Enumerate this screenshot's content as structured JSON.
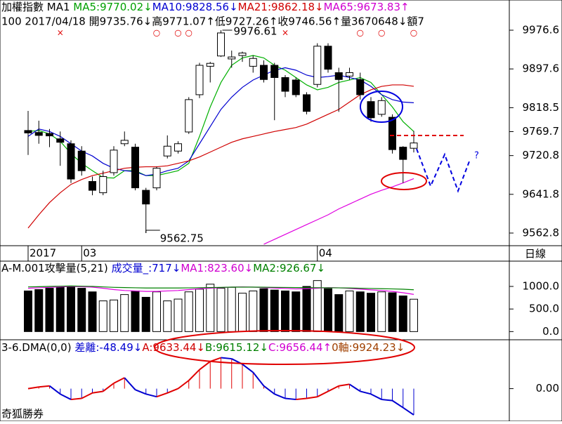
{
  "chart_data": [
    {
      "type": "candlestick",
      "header": [
        {
          "text": "加權指數 MA1 ",
          "color": "#000000"
        },
        {
          "text": "MA5:9770.02↓",
          "color": "#00a000"
        },
        {
          "text": "MA10:9828.56↓",
          "color": "#0000d0"
        },
        {
          "text": "MA21:9862.18↓",
          "color": "#d00000"
        },
        {
          "text": "MA65:9673.83↑",
          "color": "#d000d0"
        }
      ],
      "info": "100 2017/04/18 開9735.76↓高9771.07↑低9727.26↑收9746.56↑量3670648↓額7",
      "categories": [
        "2017",
        null,
        null,
        null,
        null,
        "03",
        null,
        null,
        null,
        null,
        null,
        null,
        null,
        null,
        null,
        null,
        null,
        null,
        null,
        null,
        null,
        null,
        null,
        null,
        null,
        null,
        null,
        "04",
        null,
        null,
        null,
        null,
        null,
        null,
        null,
        null,
        null
      ],
      "signals": [
        null,
        null,
        null,
        "×",
        null,
        null,
        null,
        null,
        null,
        null,
        null,
        null,
        "○",
        null,
        "○",
        "○",
        null,
        null,
        null,
        null,
        null,
        null,
        null,
        null,
        "×",
        null,
        null,
        null,
        null,
        null,
        null,
        "○",
        null,
        "○",
        null,
        null,
        "○"
      ],
      "open": [
        9772,
        9768,
        9766,
        9755,
        9745,
        9730,
        9668,
        9645,
        9686,
        9745,
        9738,
        9650,
        9655,
        9720,
        9730,
        9769,
        9845,
        9903,
        9924,
        9918,
        9925,
        9903,
        9905,
        9905,
        9880,
        9875,
        9845,
        9866,
        9944,
        9890,
        9883,
        9876,
        9831,
        9805,
        9799,
        9738,
        9735.76
      ],
      "high": [
        9812,
        9792,
        9775,
        9770,
        9752,
        9740,
        9678,
        9690,
        9740,
        9770,
        9745,
        9655,
        9698,
        9762,
        9750,
        9840,
        9910,
        9912,
        9976.61,
        9935,
        9933,
        9925,
        9915,
        9910,
        9885,
        9880,
        9850,
        9950,
        9950,
        9900,
        9900,
        9890,
        9840,
        9840,
        9805,
        9740,
        9771.07
      ],
      "low": [
        9722,
        9745,
        9738,
        9700,
        9665,
        9680,
        9640,
        9640,
        9680,
        9740,
        9650,
        9562.75,
        9650,
        9715,
        9725,
        9765,
        9838,
        9870,
        9922,
        9900,
        9912,
        9890,
        9870,
        9793,
        9840,
        9840,
        9805,
        9860,
        9890,
        9810,
        9875,
        9835,
        9790,
        9800,
        9725,
        9665,
        9727.26
      ],
      "close": [
        9767,
        9762,
        9761,
        9748,
        9673,
        9690,
        9650,
        9678,
        9732,
        9752,
        9655,
        9622,
        9695,
        9740,
        9745,
        9835,
        9905,
        9909,
        9971,
        9922,
        9930,
        9919,
        9876,
        9880,
        9852,
        9845,
        9811,
        9944,
        9897,
        9876,
        9890,
        9845,
        9798,
        9833,
        9733,
        9713,
        9746.56
      ],
      "series": [
        {
          "name": "MA5",
          "color": "#00b000",
          "values": [
            9770,
            9772,
            9765,
            9750,
            9725,
            9705,
            9690,
            9676,
            9675,
            9690,
            9690,
            9680,
            9680,
            9685,
            9690,
            9705,
            9760,
            9820,
            9870,
            9905,
            9920,
            9925,
            9920,
            9905,
            9895,
            9880,
            9865,
            9855,
            9860,
            9870,
            9875,
            9880,
            9870,
            9845,
            9820,
            9790,
            9770.02
          ]
        },
        {
          "name": "MA10",
          "color": "#0000d0",
          "values": [
            9760,
            9775,
            9770,
            9760,
            9745,
            9730,
            9720,
            9705,
            9695,
            9690,
            9688,
            9680,
            9683,
            9690,
            9695,
            9710,
            9745,
            9780,
            9815,
            9840,
            9860,
            9875,
            9885,
            9895,
            9900,
            9895,
            9885,
            9880,
            9882,
            9885,
            9880,
            9875,
            9862,
            9845,
            9835,
            9830,
            9828.56
          ]
        },
        {
          "name": "MA21",
          "color": "#d00000",
          "values": [
            9573,
            9600,
            9625,
            9645,
            9662,
            9672,
            9680,
            9685,
            9690,
            9695,
            9697,
            9698,
            9698,
            9700,
            9705,
            9710,
            9718,
            9728,
            9738,
            9748,
            9755,
            9760,
            9765,
            9770,
            9774,
            9778,
            9785,
            9795,
            9805,
            9815,
            9830,
            9845,
            9855,
            9862,
            9865,
            9865,
            9862.18
          ]
        },
        {
          "name": "MA65",
          "color": "#e000e0",
          "values": [
            null,
            null,
            null,
            null,
            null,
            null,
            null,
            null,
            null,
            null,
            null,
            null,
            null,
            null,
            null,
            null,
            null,
            null,
            null,
            null,
            null,
            null,
            9540,
            9550,
            9560,
            9570,
            9580,
            9590,
            9600,
            9612,
            9622,
            9632,
            9642,
            9650,
            9657,
            9665,
            9673.83
          ]
        }
      ],
      "ylim": [
        9537,
        10038.2
      ],
      "yticks": [
        9976.6,
        9897.6,
        9818.5,
        9769.7,
        9720.8,
        9641.8,
        9562.8
      ],
      "period_label": "日線"
    },
    {
      "type": "bar",
      "header": [
        {
          "text": "A-M.001攻擊量(5,21) ",
          "color": "#000000"
        },
        {
          "text": "成交量_:717↓",
          "color": "#0000d0"
        },
        {
          "text": "MA1:823.60↓",
          "color": "#d000d0"
        },
        {
          "text": "MA2:926.67↓",
          "color": "#008000"
        }
      ],
      "values": [
        900,
        930,
        960,
        980,
        1000,
        960,
        880,
        680,
        700,
        820,
        900,
        760,
        880,
        680,
        720,
        880,
        940,
        1050,
        960,
        980,
        850,
        900,
        950,
        920,
        900,
        880,
        1000,
        1130,
        950,
        820,
        900,
        880,
        850,
        880,
        860,
        790,
        717
      ],
      "series": [
        {
          "name": "MA1",
          "color": "#e000e0",
          "values": [
            960,
            970,
            980,
            990,
            1000,
            995,
            985,
            960,
            930,
            910,
            900,
            890,
            890,
            900,
            910,
            930,
            950,
            960,
            975,
            985,
            990,
            985,
            975,
            965,
            955,
            945,
            950,
            960,
            975,
            970,
            955,
            940,
            925,
            910,
            890,
            860,
            823.6
          ]
        },
        {
          "name": "MA2",
          "color": "#008000",
          "values": [
            990,
            995,
            1000,
            1005,
            1010,
            1005,
            1000,
            990,
            980,
            975,
            970,
            965,
            965,
            965,
            965,
            968,
            972,
            975,
            980,
            985,
            985,
            985,
            983,
            980,
            978,
            975,
            973,
            972,
            970,
            968,
            965,
            960,
            955,
            950,
            945,
            938,
            926.67
          ]
        }
      ],
      "ylim": [
        -150,
        1560
      ],
      "yticks": [
        {
          "value": 1000,
          "label": "1000.0"
        },
        {
          "value": 500,
          "label": "500.0"
        },
        {
          "value": 0,
          "label": "0.0"
        }
      ]
    },
    {
      "type": "dma",
      "header": [
        {
          "text": "3-6.DMA(0,0) ",
          "color": "#000000"
        },
        {
          "text": "差離:-48.49↓",
          "color": "#0000d0"
        },
        {
          "text": "A:9633.44↓",
          "color": "#d00000"
        },
        {
          "text": "B:9615.12↓",
          "color": "#008000"
        },
        {
          "text": "C:9656.44↑",
          "color": "#d000d0"
        },
        {
          "text": "0軸:9924.23↓",
          "color": "#a04000"
        }
      ],
      "values": [
        0,
        3,
        5,
        -10,
        -20,
        -18,
        -8,
        -5,
        10,
        20,
        -2,
        -10,
        -15,
        -8,
        0,
        15,
        35,
        50,
        57,
        55,
        45,
        30,
        5,
        -10,
        -18,
        -20,
        -18,
        -15,
        -5,
        5,
        8,
        -5,
        -10,
        -20,
        -22,
        -35,
        -48.49
      ],
      "ylim": [
        -60,
        90
      ],
      "yticks": [
        {
          "value": 0,
          "label": "0.00"
        }
      ],
      "footer": "奇狐勝券"
    }
  ]
}
